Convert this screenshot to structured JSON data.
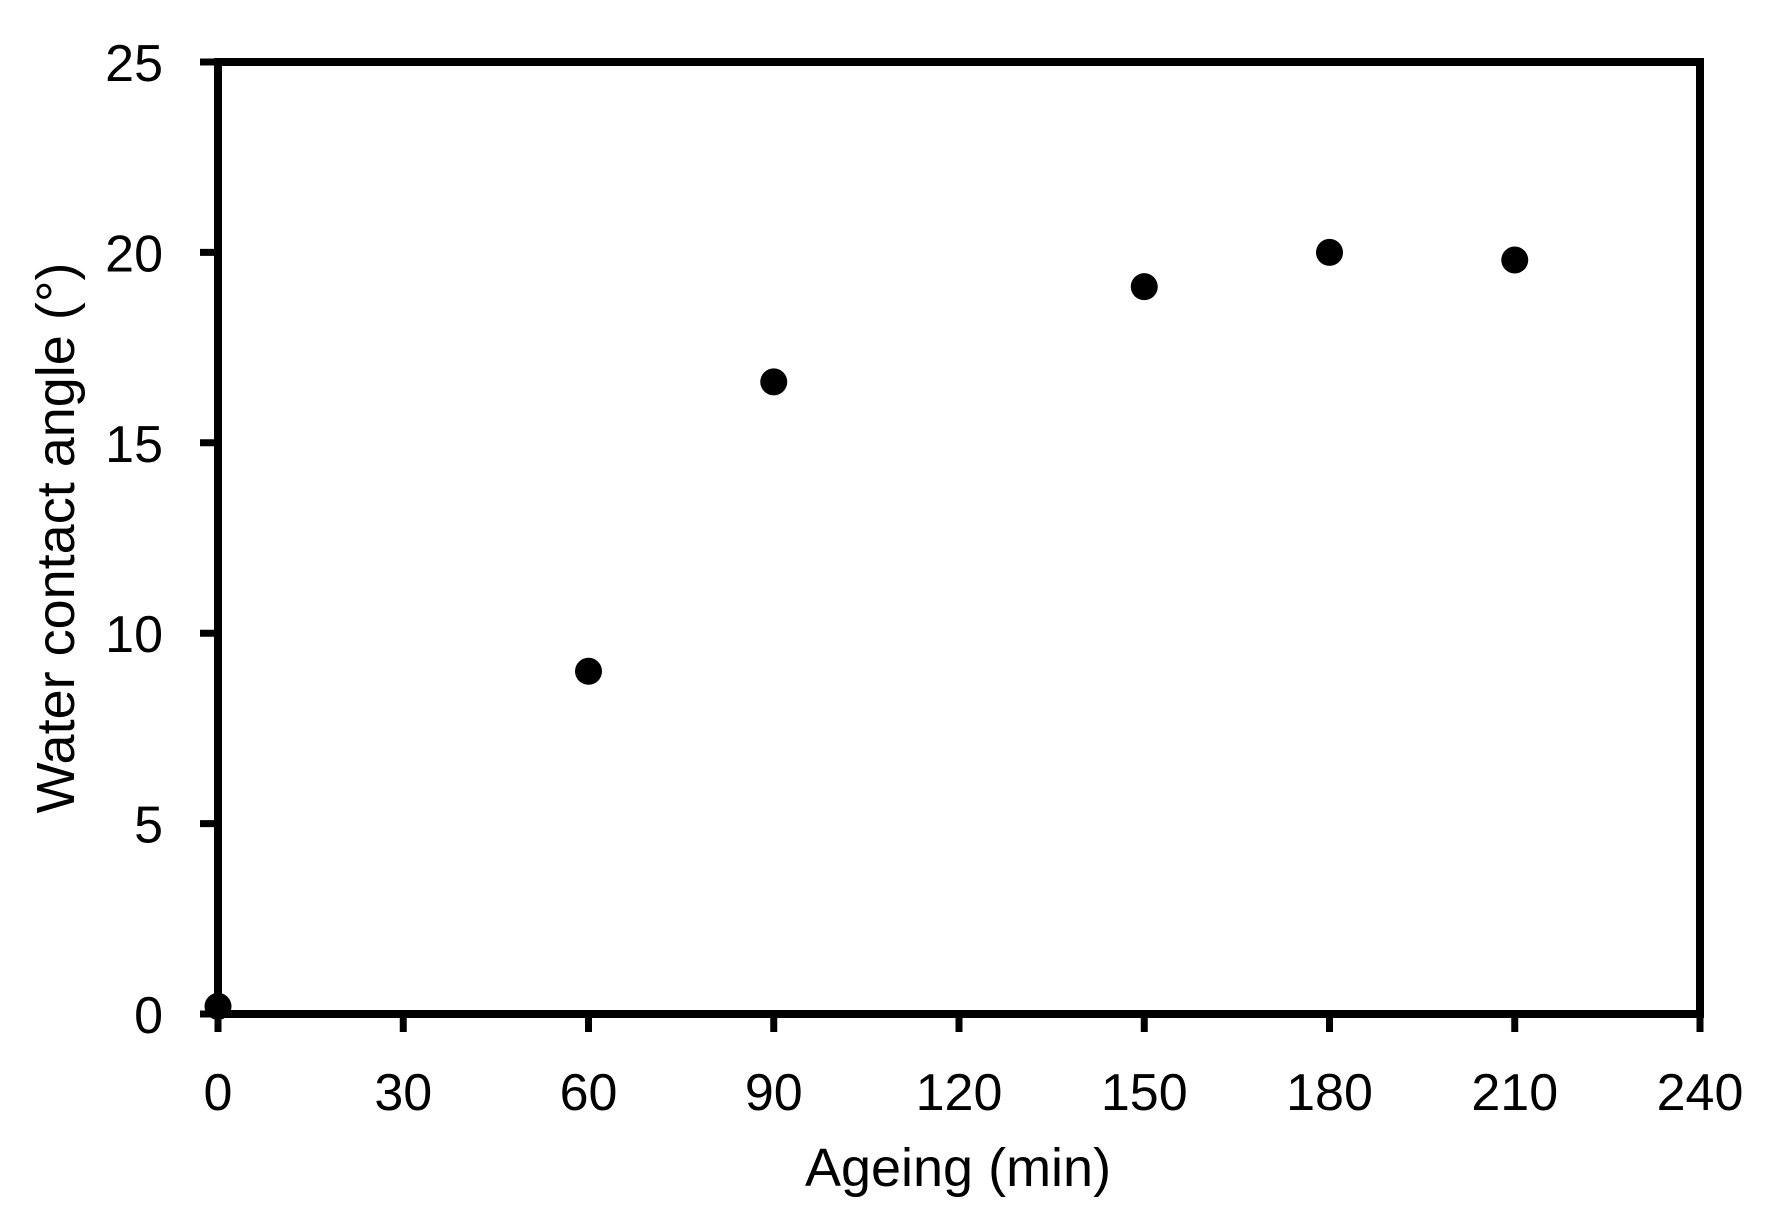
{
  "chart_data": {
    "type": "scatter",
    "title": "",
    "xlabel": "Ageing (min)",
    "ylabel": "Water contact angle (°)",
    "x": [
      0,
      60,
      90,
      150,
      180,
      210
    ],
    "y": [
      0.2,
      9.0,
      16.6,
      19.1,
      20.0,
      19.8
    ],
    "xlim": [
      0,
      240
    ],
    "ylim": [
      0,
      25
    ],
    "xticks": [
      0,
      30,
      60,
      90,
      120,
      150,
      180,
      210,
      240
    ],
    "yticks": [
      0,
      5,
      10,
      15,
      20,
      25
    ],
    "grid": false,
    "legend": null,
    "marker": {
      "shape": "circle",
      "color": "#000000",
      "radius_px": 13.5
    },
    "colors": {
      "axis": "#000000",
      "background": "#ffffff",
      "text": "#000000"
    }
  }
}
